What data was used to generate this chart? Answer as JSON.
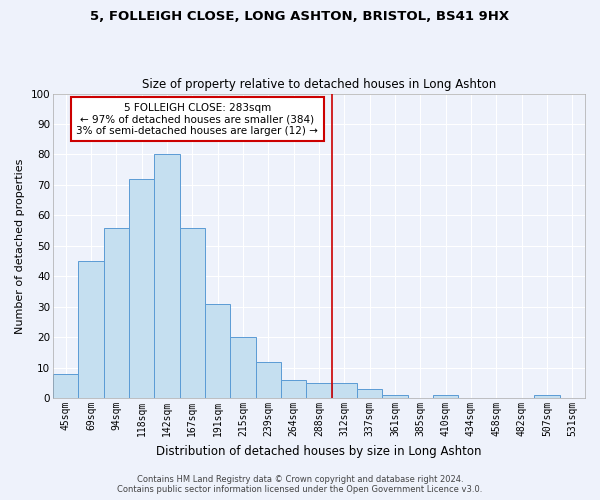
{
  "title1": "5, FOLLEIGH CLOSE, LONG ASHTON, BRISTOL, BS41 9HX",
  "title2": "Size of property relative to detached houses in Long Ashton",
  "xlabel": "Distribution of detached houses by size in Long Ashton",
  "ylabel": "Number of detached properties",
  "footer1": "Contains HM Land Registry data © Crown copyright and database right 2024.",
  "footer2": "Contains public sector information licensed under the Open Government Licence v3.0.",
  "bar_labels": [
    "45sqm",
    "69sqm",
    "94sqm",
    "118sqm",
    "142sqm",
    "167sqm",
    "191sqm",
    "215sqm",
    "239sqm",
    "264sqm",
    "288sqm",
    "312sqm",
    "337sqm",
    "361sqm",
    "385sqm",
    "410sqm",
    "434sqm",
    "458sqm",
    "482sqm",
    "507sqm",
    "531sqm"
  ],
  "bar_values": [
    8,
    45,
    56,
    72,
    80,
    56,
    31,
    20,
    12,
    6,
    5,
    5,
    3,
    1,
    0,
    1,
    0,
    0,
    0,
    1,
    0
  ],
  "bar_color": "#c5dff0",
  "bar_edgecolor": "#5b9bd5",
  "background_color": "#eef2fb",
  "grid_color": "#ffffff",
  "annotation_text": "5 FOLLEIGH CLOSE: 283sqm\n← 97% of detached houses are smaller (384)\n3% of semi-detached houses are larger (12) →",
  "annotation_box_color": "#ffffff",
  "annotation_box_edgecolor": "#cc0000",
  "vline_x": 10.5,
  "vline_color": "#cc0000",
  "ylim": [
    0,
    100
  ],
  "yticks": [
    0,
    10,
    20,
    30,
    40,
    50,
    60,
    70,
    80,
    90,
    100
  ]
}
